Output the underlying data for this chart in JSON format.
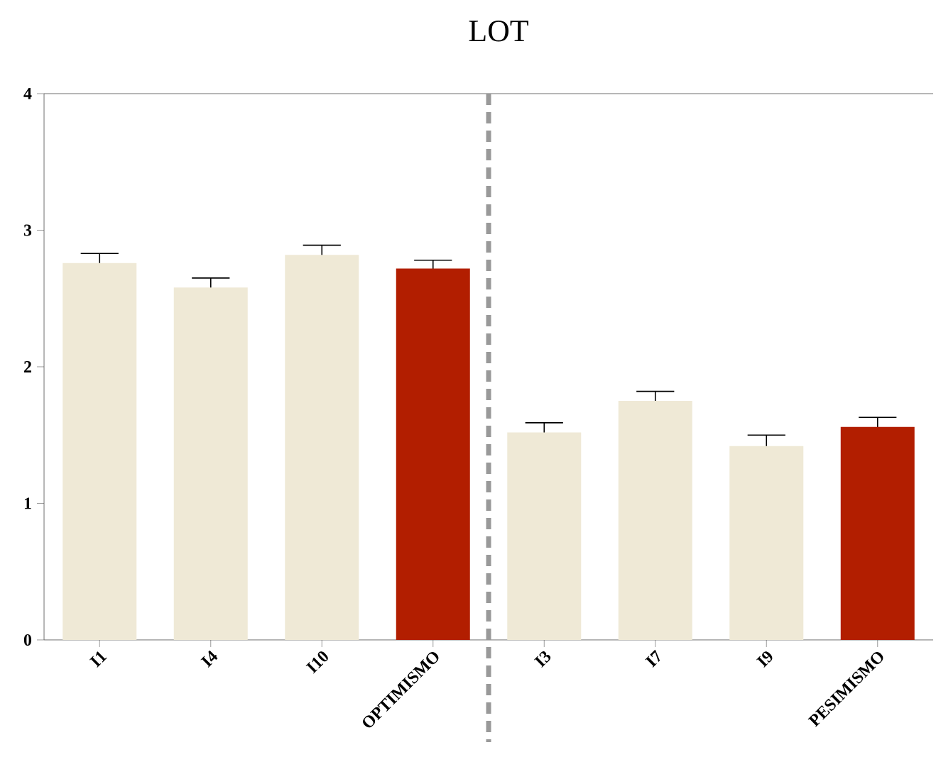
{
  "chart_data": {
    "type": "bar",
    "title": "LOT",
    "categories": [
      "I1",
      "I4",
      "I10",
      "OPTIMISMO",
      "I3",
      "I7",
      "I9",
      "PESIMISMO"
    ],
    "values": [
      2.76,
      2.58,
      2.82,
      2.72,
      1.52,
      1.75,
      1.42,
      1.56
    ],
    "errors": [
      0.07,
      0.07,
      0.07,
      0.06,
      0.07,
      0.07,
      0.08,
      0.07
    ],
    "colors": [
      "#efe9d6",
      "#efe9d6",
      "#efe9d6",
      "#b21e00",
      "#efe9d6",
      "#efe9d6",
      "#efe9d6",
      "#b21e00"
    ],
    "ylim": [
      0,
      4
    ],
    "yticks": [
      0,
      1,
      2,
      3,
      4
    ],
    "grid": false
  }
}
